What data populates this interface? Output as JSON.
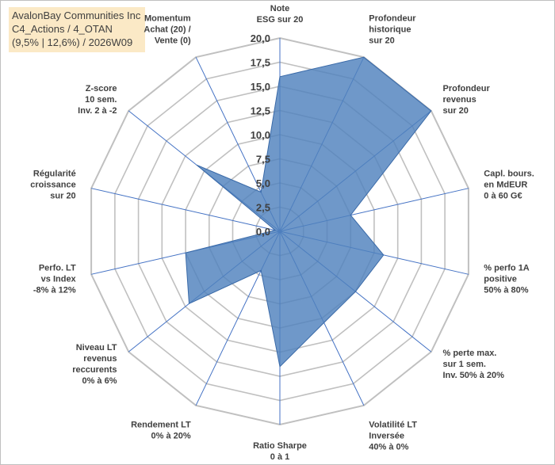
{
  "header": {
    "line1": "AvalonBay Communities Inc",
    "line2": "C4_Actions / 4_OTAN",
    "line3": "(9,5% | 12,6%) / 2026W09"
  },
  "colors": {
    "fill": "#4f81bd",
    "stroke": "#3a6aa8",
    "spoke": "#4472c4",
    "ring": "#c0c0c0",
    "title_bg": "#fbe9c6"
  },
  "chart_data": {
    "type": "radar",
    "rmin": 0,
    "rmax": 20,
    "step": 2.5,
    "tick_labels": [
      "0,0",
      "2,5",
      "5,0",
      "7,5",
      "10,0",
      "12,5",
      "15,0",
      "17,5",
      "20,0"
    ],
    "axes": [
      {
        "label": [
          "Note",
          "ESG sur 20"
        ],
        "value": 16
      },
      {
        "label": [
          "Profondeur",
          "historique",
          "sur 20"
        ],
        "value": 20
      },
      {
        "label": [
          "Profondeur",
          "revenus",
          "sur 20"
        ],
        "value": 20
      },
      {
        "label": [
          "Capl. bours.",
          "en MdEUR",
          "0 à 60 G€"
        ],
        "value": 7.5
      },
      {
        "label": [
          "% perfo 1A",
          "positive",
          "50% à 80%"
        ],
        "value": 11
      },
      {
        "label": [
          "% perte max.",
          "sur 1 sem.",
          "Inv. 50% à 20%"
        ],
        "value": 10
      },
      {
        "label": [
          "Volatilité LT",
          "Inversée",
          "40% à 0%"
        ],
        "value": 10.5
      },
      {
        "label": [
          "Ratio Sharpe",
          "0 à 1"
        ],
        "value": 14
      },
      {
        "label": [
          "Rendement LT",
          "0% à 20%"
        ],
        "value": 4.5
      },
      {
        "label": [
          "Niveau LT",
          "revenus",
          "reccurents",
          "0% à 6%"
        ],
        "value": 12
      },
      {
        "label": [
          "Perfo. LT",
          "vs Index",
          "-8% à 12%"
        ],
        "value": 10
      },
      {
        "label": [
          "Régularité",
          "croissance",
          "sur 20"
        ],
        "value": 0.5
      },
      {
        "label": [
          "Z-score",
          "10 sem.",
          "Inv. 2 à -2"
        ],
        "value": 11
      },
      {
        "label": [
          "Momentum",
          "Achat (20) /",
          "Vente (0)"
        ],
        "value": 4.5
      }
    ]
  }
}
